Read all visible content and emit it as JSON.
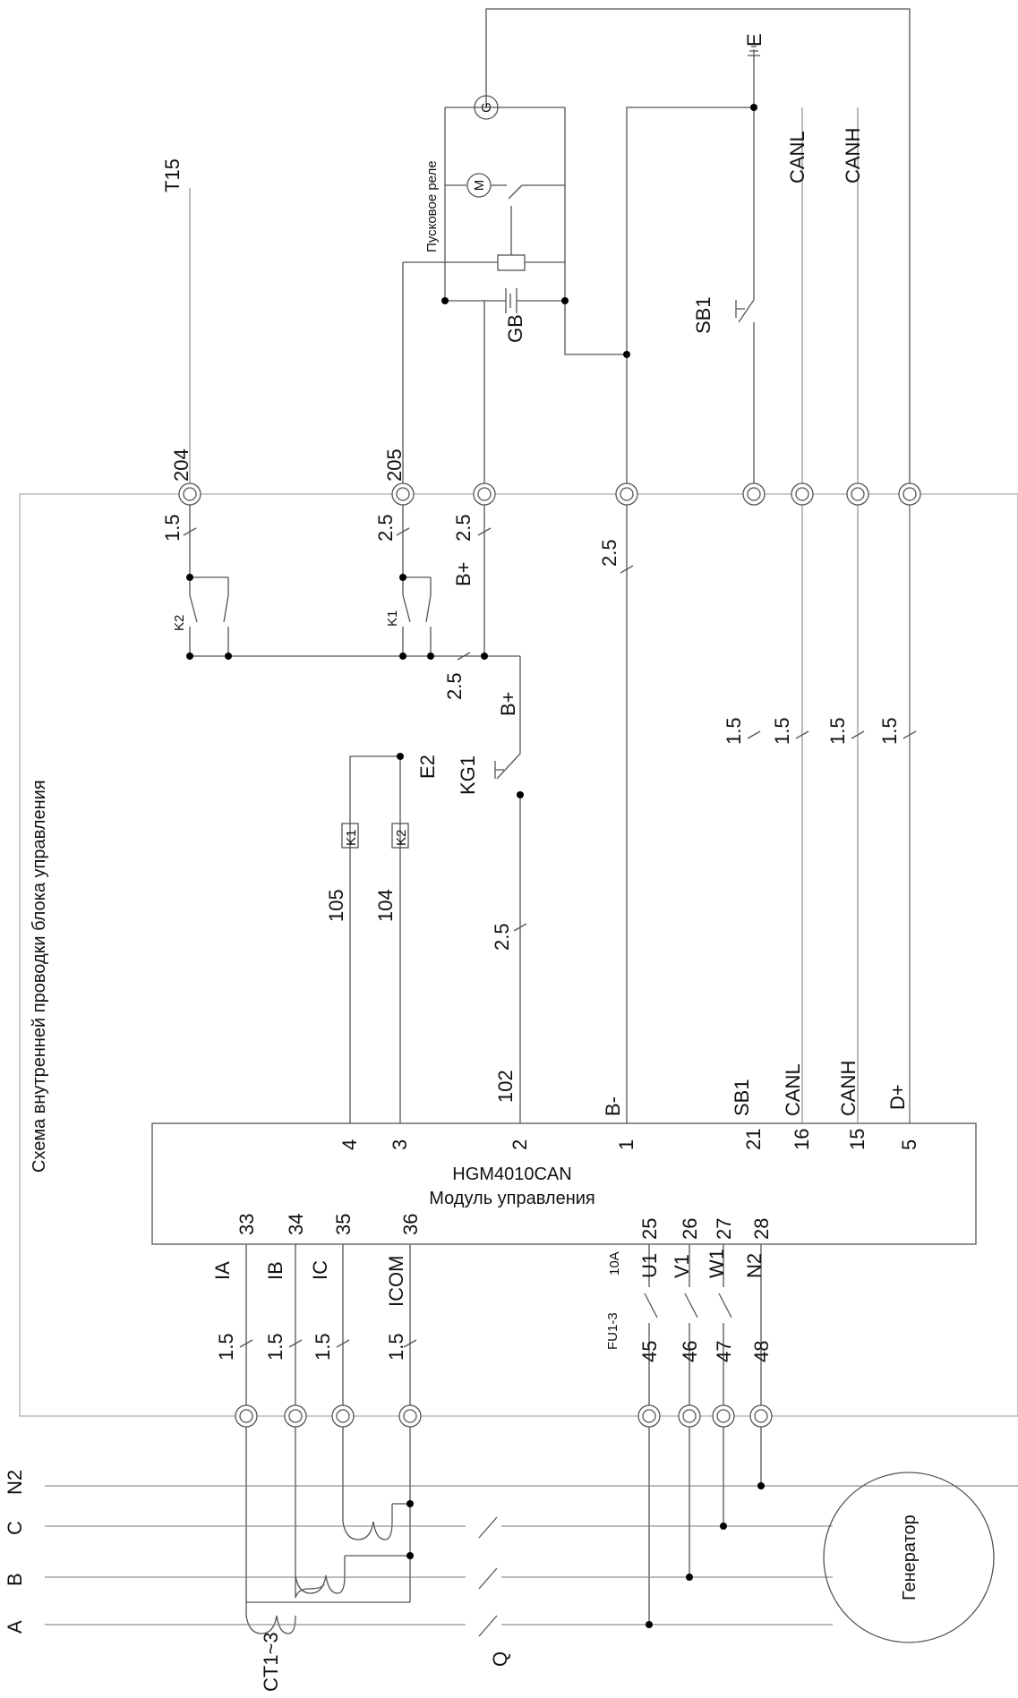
{
  "labels": {
    "t15": "T15",
    "e": "E",
    "canl_top": "CANL",
    "canh_top": "CANH",
    "g": "G",
    "m": "M",
    "start_relay": "Пусковое реле",
    "gb": "GB",
    "sb1_top": "SB1",
    "t204": "204",
    "t205": "205",
    "inner_title": "Схема внутренней проводки блока управления",
    "k2_contact": "K2",
    "k1_contact": "K1",
    "k1_coil": "K1",
    "k2_coil": "K2",
    "w105": "105",
    "w104": "104",
    "e2": "E2",
    "kg1": "KG1",
    "bplus1": "B+",
    "bplus2": "B+",
    "w102": "102",
    "bminus": "B-",
    "sb1_mod": "SB1",
    "canl_mod": "CANL",
    "canh_mod": "CANH",
    "dplus": "D+",
    "module_name": "HGM4010CAN",
    "module_desc": "Модуль управления",
    "ia": "IA",
    "ib": "IB",
    "ic": "IC",
    "icom": "ICOM",
    "fu": "FU1-3",
    "fu_rating": "10A",
    "u1": "U1",
    "v1": "V1",
    "w1": "W1",
    "n2_mod": "N2",
    "n2_bus": "N2",
    "bus_c": "C",
    "bus_b": "B",
    "bus_a": "A",
    "ct": "CT1~3",
    "q": "Q",
    "generator": "Генератор"
  },
  "pins_top": [
    "4",
    "3",
    "2",
    "1",
    "21",
    "16",
    "15",
    "5"
  ],
  "pins_bottom": [
    "33",
    "34",
    "35",
    "36",
    "25",
    "26",
    "27",
    "28"
  ],
  "terminals_bottom": [
    "45",
    "46",
    "47",
    "48"
  ],
  "wire_sizes": {
    "s204": "1.5",
    "s205": "2.5",
    "sbplus": "2.5",
    "sbminus": "2.5",
    "sk1": "2.5",
    "s102": "2.5",
    "s_sb1": "1.5",
    "s_canl": "1.5",
    "s_canh": "1.5",
    "s_dplus": "1.5",
    "s_ia": "1.5",
    "s_ib": "1.5",
    "s_ic": "1.5",
    "s_icom": "1.5"
  }
}
